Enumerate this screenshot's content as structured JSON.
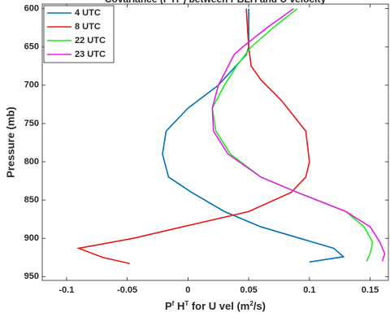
{
  "chart_data": {
    "type": "line",
    "orientation": "vertical-profile",
    "title": [
      {
        "text": "Covariance (P"
      },
      {
        "text": "f",
        "sup": true
      },
      {
        "text": "H"
      },
      {
        "text": "T",
        "sup": true
      },
      {
        "text": ") between PBLH and U velocity"
      }
    ],
    "xlabel": [
      {
        "text": "P"
      },
      {
        "text": "f",
        "sup": true
      },
      {
        "text": " H"
      },
      {
        "text": "T",
        "sup": true
      },
      {
        "text": " for U vel (m"
      },
      {
        "text": "2",
        "sup": true
      },
      {
        "text": "/s)"
      }
    ],
    "ylabel": "Pressure (mb)",
    "xlim": [
      -0.12,
      0.165
    ],
    "xticks": [
      -0.1,
      -0.05,
      0,
      0.05,
      0.1,
      0.15
    ],
    "ylim": [
      594,
      955
    ],
    "yticks": [
      600,
      650,
      700,
      750,
      800,
      850,
      900,
      950
    ],
    "y_reversed": true,
    "legend": "top-left",
    "series": [
      {
        "name": "4 UTC",
        "color": "#0072bd",
        "levels": [
          600,
          650,
          660,
          700,
          730,
          760,
          790,
          820,
          840,
          865,
          885,
          913,
          924,
          931
        ],
        "values": [
          0.05,
          0.05,
          0.048,
          0.025,
          0.0,
          -0.018,
          -0.021,
          -0.016,
          0.003,
          0.03,
          0.06,
          0.12,
          0.128,
          0.1
        ]
      },
      {
        "name": "8 UTC",
        "color": "#e8191a",
        "levels": [
          600,
          650,
          675,
          693,
          720,
          760,
          800,
          820,
          840,
          865,
          887,
          900,
          913,
          925,
          933
        ],
        "values": [
          0.048,
          0.05,
          0.052,
          0.06,
          0.077,
          0.097,
          0.1,
          0.097,
          0.085,
          0.05,
          -0.01,
          -0.045,
          -0.09,
          -0.07,
          -0.048
        ]
      },
      {
        "name": "22 UTC",
        "color": "#22e81e",
        "levels": [
          600,
          625,
          650,
          675,
          700,
          730,
          760,
          790,
          820,
          840,
          865,
          885,
          905,
          920,
          930
        ],
        "values": [
          0.09,
          0.07,
          0.052,
          0.04,
          0.03,
          0.02,
          0.023,
          0.035,
          0.06,
          0.09,
          0.13,
          0.145,
          0.152,
          0.15,
          0.147
        ]
      },
      {
        "name": "23 UTC",
        "color": "#e81ee8",
        "levels": [
          600,
          625,
          650,
          660,
          700,
          730,
          760,
          790,
          820,
          840,
          865,
          885,
          905,
          920,
          930
        ],
        "values": [
          0.087,
          0.065,
          0.045,
          0.038,
          0.025,
          0.02,
          0.021,
          0.033,
          0.06,
          0.09,
          0.13,
          0.15,
          0.158,
          0.162,
          0.16
        ]
      }
    ]
  }
}
